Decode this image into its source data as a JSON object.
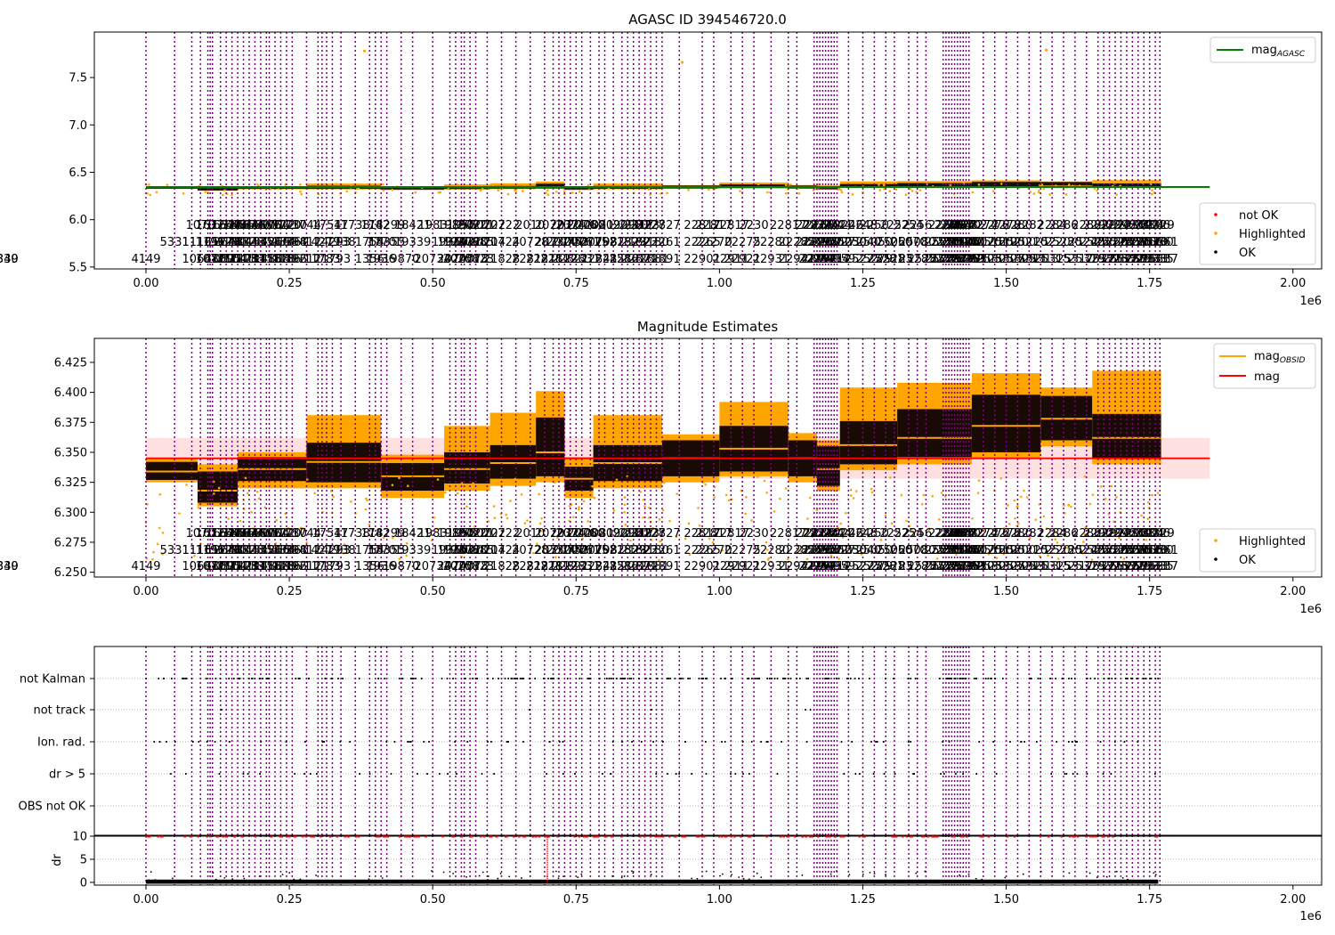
{
  "chart_data": [
    {
      "type": "scatter",
      "title": "AGASC ID 394546720.0",
      "x_exponent_label": "1e6",
      "xlim": [
        -90000,
        2050000
      ],
      "ylim": [
        5.48,
        7.98
      ],
      "x_ticks": [
        0,
        250000,
        500000,
        750000,
        1000000,
        1250000,
        1500000,
        1750000,
        2000000
      ],
      "x_tick_labels": [
        "0.00",
        "0.25",
        "0.50",
        "0.75",
        "1.00",
        "1.25",
        "1.50",
        "1.75",
        "2.00"
      ],
      "y_ticks": [
        5.5,
        6.0,
        6.5,
        7.0,
        7.5
      ],
      "y_tick_labels": [
        "5.5",
        "6.0",
        "6.5",
        "7.0",
        "7.5"
      ],
      "lines": [
        {
          "name": "mag_AGASC",
          "color": "#008000",
          "x": [
            0,
            1855000
          ],
          "y": [
            6.345,
            6.345
          ]
        }
      ],
      "outliers": [
        {
          "x": 381000,
          "y": 7.78
        },
        {
          "x": 935000,
          "y": 7.66
        },
        {
          "x": 1570000,
          "y": 7.79
        }
      ],
      "legend_top": {
        "placement": "top-right",
        "entries": [
          {
            "label_main": "mag",
            "label_sub": "AGASC",
            "color": "#008000",
            "marker": "line"
          }
        ]
      },
      "legend_bottom": {
        "placement": "lower-right",
        "entries": [
          {
            "label": "not OK",
            "color": "#ff0000",
            "marker": "dot"
          },
          {
            "label": "Highlighted",
            "color": "#ffa500",
            "marker": "dot"
          },
          {
            "label": "OK",
            "color": "#000000",
            "marker": "dot"
          }
        ]
      },
      "grid": false
    },
    {
      "type": "scatter",
      "title": "Magnitude Estimates",
      "x_exponent_label": "1e6",
      "xlim": [
        -90000,
        2050000
      ],
      "ylim": [
        6.246,
        6.445
      ],
      "x_ticks": [
        0,
        250000,
        500000,
        750000,
        1000000,
        1250000,
        1500000,
        1750000,
        2000000
      ],
      "x_tick_labels": [
        "0.00",
        "0.25",
        "0.50",
        "0.75",
        "1.00",
        "1.25",
        "1.50",
        "1.75",
        "2.00"
      ],
      "y_ticks": [
        6.25,
        6.275,
        6.3,
        6.325,
        6.35,
        6.375,
        6.4,
        6.425
      ],
      "y_tick_labels": [
        "6.250",
        "6.275",
        "6.300",
        "6.325",
        "6.350",
        "6.375",
        "6.400",
        "6.425"
      ],
      "mag": 6.345,
      "mag_band": [
        6.328,
        6.362
      ],
      "mag_band_xrange": [
        0,
        1855000
      ],
      "segments": [
        {
          "x0": 0,
          "x1": 90000,
          "mid": 6.334,
          "black_lo": 6.327,
          "black_hi": 6.342,
          "orange_lo": 6.325,
          "orange_hi": 6.345
        },
        {
          "x0": 90000,
          "x1": 160000,
          "mid": 6.318,
          "black_lo": 6.308,
          "black_hi": 6.334,
          "orange_lo": 6.305,
          "orange_hi": 6.34
        },
        {
          "x0": 160000,
          "x1": 280000,
          "mid": 6.336,
          "black_lo": 6.326,
          "black_hi": 6.346,
          "orange_lo": 6.32,
          "orange_hi": 6.35
        },
        {
          "x0": 280000,
          "x1": 410000,
          "mid": 6.342,
          "black_lo": 6.325,
          "black_hi": 6.358,
          "orange_lo": 6.32,
          "orange_hi": 6.381
        },
        {
          "x0": 410000,
          "x1": 520000,
          "mid": 6.33,
          "black_lo": 6.318,
          "black_hi": 6.341,
          "orange_lo": 6.312,
          "orange_hi": 6.348
        },
        {
          "x0": 520000,
          "x1": 600000,
          "mid": 6.336,
          "black_lo": 6.324,
          "black_hi": 6.35,
          "orange_lo": 6.318,
          "orange_hi": 6.372
        },
        {
          "x0": 600000,
          "x1": 680000,
          "mid": 6.341,
          "black_lo": 6.328,
          "black_hi": 6.356,
          "orange_lo": 6.322,
          "orange_hi": 6.383
        },
        {
          "x0": 680000,
          "x1": 730000,
          "mid": 6.35,
          "black_lo": 6.33,
          "black_hi": 6.379,
          "orange_lo": 6.325,
          "orange_hi": 6.401
        },
        {
          "x0": 730000,
          "x1": 780000,
          "mid": 6.328,
          "black_lo": 6.318,
          "black_hi": 6.338,
          "orange_lo": 6.312,
          "orange_hi": 6.346
        },
        {
          "x0": 780000,
          "x1": 900000,
          "mid": 6.341,
          "black_lo": 6.326,
          "black_hi": 6.356,
          "orange_lo": 6.32,
          "orange_hi": 6.381
        },
        {
          "x0": 900000,
          "x1": 1000000,
          "mid": 6.345,
          "black_lo": 6.33,
          "black_hi": 6.36,
          "orange_lo": 6.325,
          "orange_hi": 6.365
        },
        {
          "x0": 1000000,
          "x1": 1120000,
          "mid": 6.353,
          "black_lo": 6.334,
          "black_hi": 6.372,
          "orange_lo": 6.33,
          "orange_hi": 6.392
        },
        {
          "x0": 1120000,
          "x1": 1170000,
          "mid": 6.345,
          "black_lo": 6.33,
          "black_hi": 6.36,
          "orange_lo": 6.325,
          "orange_hi": 6.366
        },
        {
          "x0": 1170000,
          "x1": 1210000,
          "mid": 6.336,
          "black_lo": 6.322,
          "black_hi": 6.355,
          "orange_lo": 6.318,
          "orange_hi": 6.36
        },
        {
          "x0": 1210000,
          "x1": 1310000,
          "mid": 6.356,
          "black_lo": 6.34,
          "black_hi": 6.376,
          "orange_lo": 6.335,
          "orange_hi": 6.404
        },
        {
          "x0": 1310000,
          "x1": 1440000,
          "mid": 6.362,
          "black_lo": 6.346,
          "black_hi": 6.386,
          "orange_lo": 6.34,
          "orange_hi": 6.408
        },
        {
          "x0": 1440000,
          "x1": 1560000,
          "mid": 6.372,
          "black_lo": 6.35,
          "black_hi": 6.398,
          "orange_lo": 6.345,
          "orange_hi": 6.416
        },
        {
          "x0": 1560000,
          "x1": 1650000,
          "mid": 6.378,
          "black_lo": 6.36,
          "black_hi": 6.397,
          "orange_lo": 6.355,
          "orange_hi": 6.404
        },
        {
          "x0": 1650000,
          "x1": 1770000,
          "mid": 6.362,
          "black_lo": 6.345,
          "black_hi": 6.382,
          "orange_lo": 6.34,
          "orange_hi": 6.418
        }
      ],
      "legend_top": {
        "placement": "top-right",
        "entries": [
          {
            "label_main": "mag",
            "label_sub": "OBSID",
            "color": "#ffa500",
            "marker": "line"
          },
          {
            "label_main": "mag",
            "label_sub": "",
            "color": "#ff0000",
            "marker": "line"
          }
        ]
      },
      "legend_bottom": {
        "placement": "lower-right",
        "entries": [
          {
            "label": "Highlighted",
            "color": "#ffa500",
            "marker": "dot"
          },
          {
            "label": "OK",
            "color": "#000000",
            "marker": "dot"
          }
        ]
      },
      "grid": false
    },
    {
      "type": "scatter",
      "title": "",
      "x_exponent_label": "1e6",
      "xlim": [
        -90000,
        2050000
      ],
      "flag_categories": [
        "not Kalman",
        "not track",
        "Ion. rad.",
        "dr > 5",
        "OBS not OK"
      ],
      "flag_occurrence_fraction": [
        0.55,
        0.01,
        0.2,
        0.15,
        0.0
      ],
      "sparse_flag_points": [
        {
          "category": "not track",
          "x": 1150000
        },
        {
          "category": "not track",
          "x": 1540000
        }
      ],
      "grid": true
    },
    {
      "type": "scatter",
      "title": "",
      "x_exponent_label": "1e6",
      "xlim": [
        -90000,
        2050000
      ],
      "ylim": [
        -0.6,
        10.2
      ],
      "ylabel": "dr",
      "x_ticks": [
        0,
        250000,
        500000,
        750000,
        1000000,
        1250000,
        1500000,
        1750000,
        2000000
      ],
      "x_tick_labels": [
        "0.00",
        "0.25",
        "0.50",
        "0.75",
        "1.00",
        "1.25",
        "1.50",
        "1.75",
        "2.00"
      ],
      "y_ticks": [
        0,
        5,
        10
      ],
      "y_tick_labels": [
        "0",
        "5",
        "10"
      ],
      "threshold": 10,
      "red_spike": {
        "x": 700000,
        "y_range": [
          0,
          10
        ]
      },
      "grid": true
    }
  ],
  "observations": {
    "line_color": "#800080",
    "xs": [
      0,
      50000,
      80000,
      95000,
      108000,
      112000,
      116000,
      130000,
      140000,
      150000,
      160000,
      170000,
      180000,
      190000,
      200000,
      210000,
      215000,
      225000,
      235000,
      245000,
      255000,
      280000,
      300000,
      307000,
      315000,
      325000,
      340000,
      365000,
      390000,
      400000,
      410000,
      420000,
      445000,
      465000,
      500000,
      530000,
      540000,
      550000,
      555000,
      565000,
      575000,
      595000,
      620000,
      645000,
      670000,
      695000,
      710000,
      720000,
      730000,
      740000,
      750000,
      760000,
      775000,
      790000,
      800000,
      815000,
      830000,
      840000,
      850000,
      860000,
      870000,
      880000,
      890000,
      900000,
      930000,
      970000,
      990000,
      1020000,
      1040000,
      1060000,
      1090000,
      1120000,
      1135000,
      1165000,
      1170000,
      1175000,
      1180000,
      1185000,
      1190000,
      1195000,
      1200000,
      1205000,
      1225000,
      1250000,
      1270000,
      1290000,
      1305000,
      1330000,
      1345000,
      1360000,
      1390000,
      1395000,
      1400000,
      1405000,
      1410000,
      1415000,
      1420000,
      1425000,
      1430000,
      1435000,
      1460000,
      1480000,
      1500000,
      1520000,
      1540000,
      1560000,
      1580000,
      1600000,
      1620000,
      1640000,
      1660000,
      1670000,
      1680000,
      1690000,
      1700000,
      1710000,
      1720000,
      1730000,
      1740000,
      1750000,
      1760000,
      1768000
    ],
    "labels_row1": [
      "",
      "",
      "",
      "1070",
      "",
      "1612",
      "",
      "1632",
      "1640",
      "1648",
      "1654",
      "1664",
      "1674",
      "1680",
      "1690",
      "1696",
      "",
      "1704",
      "1712",
      "1720",
      "1730",
      "1744",
      "",
      "",
      "1754",
      "",
      "17",
      "1738",
      "",
      "1742",
      "",
      "18299",
      "",
      "18421",
      "1983",
      "",
      "19850",
      "1956",
      "",
      "19720",
      "20721",
      "20722",
      "20722",
      "",
      "2010",
      "",
      "20723",
      "",
      "2072",
      "2074",
      "",
      "2076",
      "2080",
      "2081",
      "",
      "2092",
      "",
      "2098",
      "2110",
      "2117",
      "2123",
      "2127",
      "",
      "22827",
      "",
      "22817",
      "22817",
      "22817",
      "",
      "2230",
      "",
      "22817",
      "",
      "22817",
      "2232",
      "2238",
      "",
      "2240",
      "",
      "2242",
      "",
      "2244",
      "2246",
      "2248",
      "2250",
      "",
      "2252",
      "2254",
      "2256",
      "",
      "2258",
      "",
      "2260",
      "",
      "2262",
      "2264",
      "2266",
      "2268",
      "2270",
      "2272",
      "2274",
      "2276",
      "2278",
      "2280",
      "2282",
      "",
      "2284",
      "2286",
      "",
      "2288",
      "2290",
      "",
      "2292",
      "2294",
      "2296",
      "",
      "2298",
      "2300",
      "2302",
      "2304",
      "2306",
      "2329"
    ],
    "labels_row2": [
      "",
      "5331",
      "",
      "11165",
      "",
      "1196",
      "",
      "1264",
      "1278",
      "1290",
      "1304",
      "1314",
      "1328",
      "",
      "1342",
      "1354",
      "",
      "1366",
      "1374",
      "1386",
      "1398",
      "1412",
      "",
      "14279",
      "",
      "14293",
      "1738",
      "",
      "1754",
      "",
      "1770",
      "18355",
      "",
      "19339",
      "",
      "19350",
      "19363",
      "19376",
      "",
      "20120",
      "20985",
      "20714",
      "20724",
      "",
      "20728",
      "",
      "20730",
      "",
      "20744",
      "20753",
      "",
      "20761",
      "20775",
      "20798",
      "",
      "20823",
      "",
      "21829",
      "",
      "21823",
      "",
      "23130",
      "",
      "22261",
      "",
      "22265",
      "22270",
      "",
      "22275",
      "",
      "22280",
      "",
      "22285",
      "22290",
      "",
      "22295",
      "",
      "24950",
      "",
      "25021",
      "",
      "25027",
      "25030",
      "25040",
      "25050",
      "",
      "25060",
      "25070",
      "25080",
      "",
      "25090",
      "",
      "25100",
      "",
      "25110",
      "25120",
      "25130",
      "25140",
      "25150",
      "25160",
      "25170",
      "25180",
      "25190",
      "25200",
      "25210",
      "",
      "25220",
      "25230",
      "",
      "25240",
      "25250",
      "",
      "25260",
      "25270",
      "25280",
      "",
      "25290",
      "25300",
      "25310",
      "25320",
      "25330",
      "25661"
    ],
    "labels_row3": [
      "4149",
      "",
      "",
      "10668",
      "",
      "1072",
      "",
      "1082",
      "1095",
      "1104",
      "1112",
      "1128",
      "1138",
      "",
      "1148",
      "1158",
      "",
      "1168",
      "1178",
      "1186",
      "1196",
      "1212",
      "",
      "11783",
      "",
      "11793",
      "",
      "",
      "1356",
      "",
      "1936",
      "",
      "19870",
      "",
      "20734",
      "",
      "20740",
      "20751",
      "",
      "20778",
      "20823",
      "",
      "21828",
      "",
      "22812",
      "22811",
      "",
      "22812",
      "",
      "22821",
      "",
      "22831",
      "",
      "22841",
      "",
      "22851",
      "",
      "22861",
      "",
      "22871",
      "",
      "22881",
      "",
      "22891",
      "",
      "22901",
      "",
      "22911",
      "22921",
      "",
      "22931",
      "",
      "22941",
      "",
      "22951",
      "22961",
      "",
      "22971",
      "",
      "24954",
      "",
      "24959",
      "",
      "25277",
      "25279",
      "25281",
      "25283",
      "",
      "25285",
      "25287",
      "25289",
      "",
      "25291",
      "",
      "25293",
      "",
      "25295",
      "25297",
      "25299",
      "25301",
      "25303",
      "25305",
      "25307",
      "25309",
      "25311",
      "25313",
      "25315",
      "",
      "25317",
      "25319",
      "",
      "25321",
      "25323",
      "",
      "25325",
      "25327",
      "25329",
      "",
      "25331",
      "25333",
      "25335",
      "25337",
      "25339",
      "25340"
    ]
  }
}
